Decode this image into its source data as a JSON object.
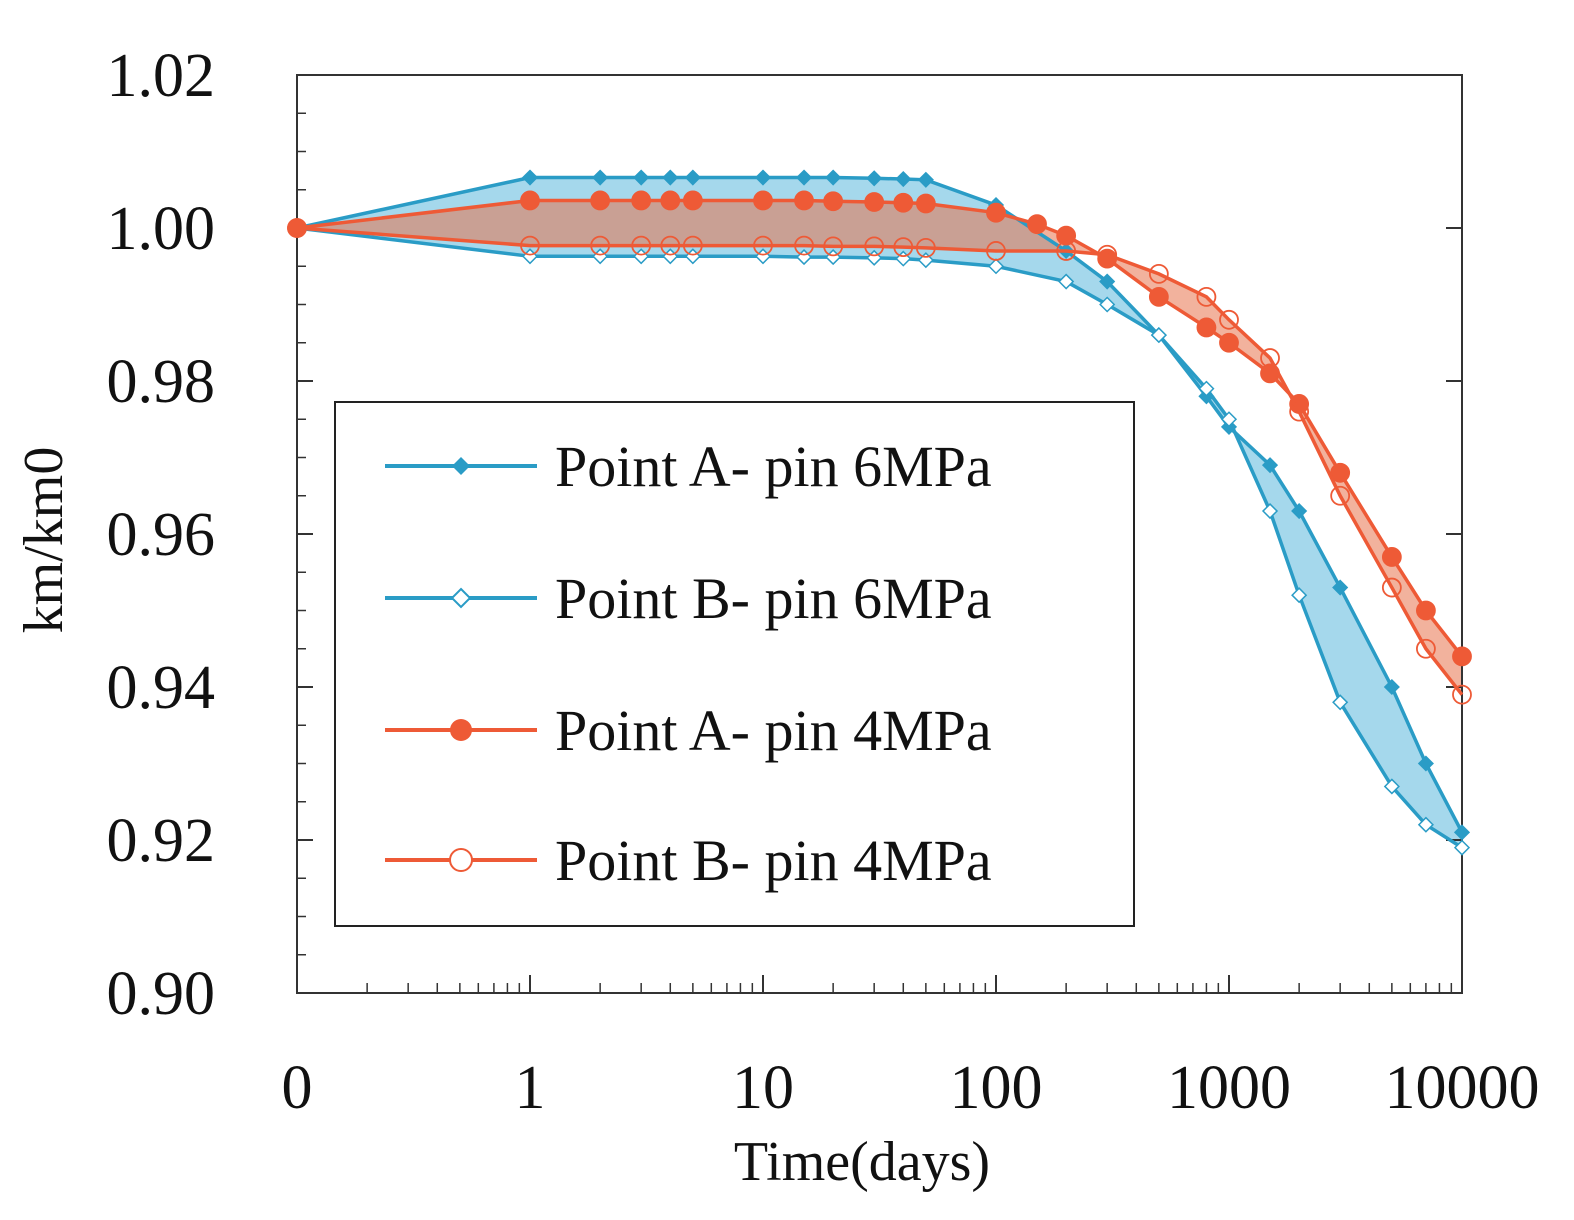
{
  "chart_data": {
    "type": "line",
    "title": "",
    "xlabel": "Time(days)",
    "ylabel": "km/km0",
    "xscale": "log (0 placed one decade left of 1)",
    "xlim": [
      0,
      10000
    ],
    "ylim": [
      0.9,
      1.02
    ],
    "x_tick_labels": [
      "0",
      "1",
      "10",
      "100",
      "1000",
      "10000"
    ],
    "x_tick_values": [
      0,
      1,
      10,
      100,
      1000,
      10000
    ],
    "y_tick_labels": [
      "0.90",
      "0.92",
      "0.94",
      "0.96",
      "0.98",
      "1.00",
      "1.02"
    ],
    "y_tick_values": [
      0.9,
      0.92,
      0.94,
      0.96,
      0.98,
      1.0,
      1.02
    ],
    "grid": false,
    "legend_position": "center-left",
    "series": [
      {
        "name": "Point A- pin 6MPa",
        "color": "#2a9cc6",
        "marker": "filled-diamond",
        "x": [
          0,
          1,
          2,
          3,
          4,
          5,
          10,
          15,
          20,
          30,
          40,
          50,
          100,
          200,
          300,
          500,
          800,
          1000,
          1500,
          2000,
          3000,
          5000,
          7000,
          10000
        ],
        "y": [
          1.0,
          1.0066,
          1.0066,
          1.0066,
          1.0066,
          1.0066,
          1.0066,
          1.0066,
          1.0066,
          1.0065,
          1.0064,
          1.0063,
          1.003,
          0.997,
          0.993,
          0.986,
          0.978,
          0.974,
          0.969,
          0.963,
          0.953,
          0.94,
          0.93,
          0.921
        ]
      },
      {
        "name": "Point B- pin 6MPa",
        "color": "#2a9cc6",
        "marker": "hollow-diamond",
        "x": [
          0,
          1,
          2,
          3,
          4,
          5,
          10,
          15,
          20,
          30,
          40,
          50,
          100,
          200,
          300,
          500,
          800,
          1000,
          1500,
          2000,
          3000,
          5000,
          7000,
          10000
        ],
        "y": [
          1.0,
          0.9963,
          0.9963,
          0.9963,
          0.9963,
          0.9963,
          0.9963,
          0.9962,
          0.9962,
          0.9961,
          0.996,
          0.9958,
          0.995,
          0.993,
          0.99,
          0.986,
          0.979,
          0.975,
          0.963,
          0.952,
          0.938,
          0.927,
          0.922,
          0.919
        ]
      },
      {
        "name": "Point A- pin 4MPa",
        "color": "#ee5a36",
        "marker": "filled-circle",
        "x": [
          0,
          1,
          2,
          3,
          4,
          5,
          10,
          15,
          20,
          30,
          40,
          50,
          100,
          150,
          200,
          300,
          500,
          800,
          1000,
          1500,
          2000,
          3000,
          5000,
          7000,
          10000
        ],
        "y": [
          1.0,
          1.0036,
          1.0036,
          1.0036,
          1.0036,
          1.0036,
          1.0036,
          1.0036,
          1.0035,
          1.0034,
          1.0033,
          1.0032,
          1.002,
          1.0005,
          0.999,
          0.996,
          0.991,
          0.987,
          0.985,
          0.981,
          0.977,
          0.968,
          0.957,
          0.95,
          0.944
        ]
      },
      {
        "name": "Point B- pin 4MPa",
        "color": "#ee5a36",
        "marker": "hollow-circle",
        "x": [
          0,
          1,
          2,
          3,
          4,
          5,
          10,
          15,
          20,
          30,
          40,
          50,
          100,
          200,
          300,
          500,
          800,
          1000,
          1500,
          2000,
          3000,
          5000,
          7000,
          10000
        ],
        "y": [
          1.0,
          0.9977,
          0.9977,
          0.9977,
          0.9977,
          0.9977,
          0.9977,
          0.9977,
          0.9976,
          0.9976,
          0.9975,
          0.9974,
          0.997,
          0.997,
          0.9965,
          0.994,
          0.991,
          0.988,
          0.983,
          0.976,
          0.965,
          0.953,
          0.945,
          0.939
        ]
      }
    ]
  }
}
